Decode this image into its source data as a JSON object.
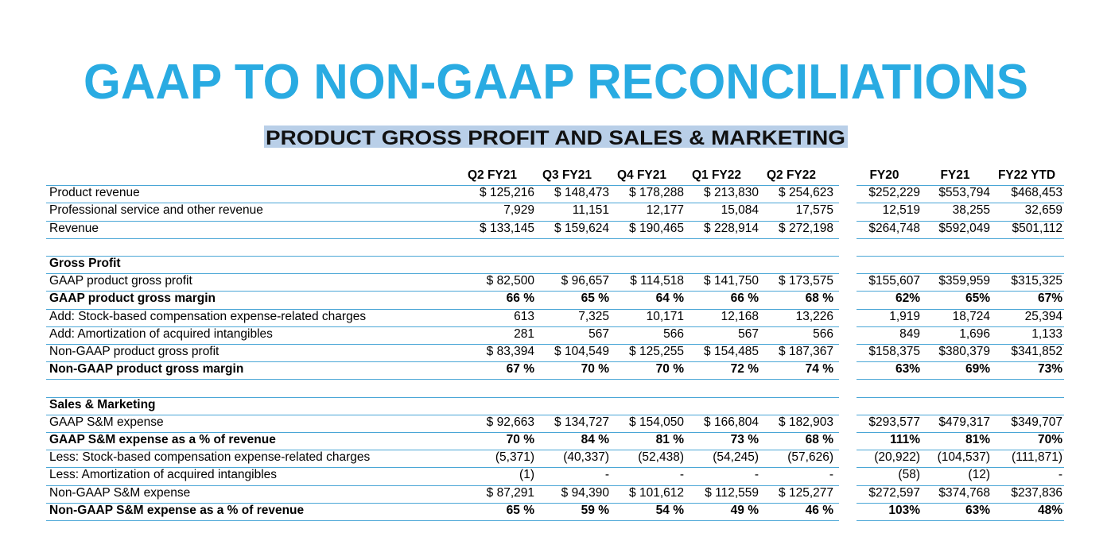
{
  "header": {
    "title": "GAAP TO NON-GAAP RECONCILIATIONS",
    "subtitle": "PRODUCT GROSS PROFIT AND SALES & MARKETING"
  },
  "table": {
    "columns": [
      "Q2 FY21",
      "Q3 FY21",
      "Q4 FY21",
      "Q1 FY22",
      "Q2 FY22",
      "FY20",
      "FY21",
      "FY22 YTD"
    ],
    "sections": [
      {
        "rows": [
          {
            "label": "Product revenue",
            "values": [
              "$ 125,216",
              "$ 148,473",
              "$ 178,288",
              "$ 213,830",
              "$ 254,623",
              "$252,229",
              "$553,794",
              "$468,453"
            ],
            "bold": false
          },
          {
            "label": "Professional service and other revenue",
            "values": [
              "7,929",
              "11,151",
              "12,177",
              "15,084",
              "17,575",
              "12,519",
              "38,255",
              "32,659"
            ],
            "bold": false
          },
          {
            "label": "Revenue",
            "values": [
              "$ 133,145",
              "$ 159,624",
              "$ 190,465",
              "$ 228,914",
              "$ 272,198",
              "$264,748",
              "$592,049",
              "$501,112"
            ],
            "bold": false
          }
        ]
      },
      {
        "title": "Gross Profit",
        "rows": [
          {
            "label": "GAAP product gross profit",
            "values": [
              "$ 82,500",
              "$ 96,657",
              "$ 114,518",
              "$ 141,750",
              "$ 173,575",
              "$155,607",
              "$359,959",
              "$315,325"
            ],
            "bold": false
          },
          {
            "label": "GAAP product gross margin",
            "values": [
              "66 %",
              "65 %",
              "64 %",
              "66 %",
              "68 %",
              "62%",
              "65%",
              "67%"
            ],
            "bold": true
          },
          {
            "label": "Add: Stock-based compensation expense-related charges",
            "values": [
              "613",
              "7,325",
              "10,171",
              "12,168",
              "13,226",
              "1,919",
              "18,724",
              "25,394"
            ],
            "bold": false
          },
          {
            "label": "Add: Amortization of acquired intangibles",
            "values": [
              "281",
              "567",
              "566",
              "567",
              "566",
              "849",
              "1,696",
              "1,133"
            ],
            "bold": false
          },
          {
            "label": "Non-GAAP product gross profit",
            "values": [
              "$ 83,394",
              "$ 104,549",
              "$ 125,255",
              "$ 154,485",
              "$ 187,367",
              "$158,375",
              "$380,379",
              "$341,852"
            ],
            "bold": false
          },
          {
            "label": "Non-GAAP product gross margin",
            "values": [
              "67 %",
              "70 %",
              "70 %",
              "72 %",
              "74 %",
              "63%",
              "69%",
              "73%"
            ],
            "bold": true
          }
        ]
      },
      {
        "title": "Sales & Marketing",
        "rows": [
          {
            "label": "GAAP S&M expense",
            "values": [
              "$ 92,663",
              "$ 134,727",
              "$ 154,050",
              "$ 166,804",
              "$ 182,903",
              "$293,577",
              "$479,317",
              "$349,707"
            ],
            "bold": false
          },
          {
            "label": "GAAP S&M expense as a % of revenue",
            "values": [
              "70 %",
              "84 %",
              "81 %",
              "73 %",
              "68 %",
              "111%",
              "81%",
              "70%"
            ],
            "bold": true
          },
          {
            "label": "Less: Stock-based compensation expense-related charges",
            "values": [
              "(5,371)",
              "(40,337)",
              "(52,438)",
              "(54,245)",
              "(57,626)",
              "(20,922)",
              "(104,537)",
              "(111,871)"
            ],
            "bold": false
          },
          {
            "label": "Less: Amortization of acquired intangibles",
            "values": [
              "(1)",
              "-",
              "-",
              "-",
              "-",
              "(58)",
              "(12)",
              "-"
            ],
            "bold": false
          },
          {
            "label": "Non-GAAP S&M expense",
            "values": [
              "$ 87,291",
              "$ 94,390",
              "$ 101,612",
              "$ 112,559",
              "$ 125,277",
              "$272,597",
              "$374,768",
              "$237,836"
            ],
            "bold": false
          },
          {
            "label": "Non-GAAP S&M expense as a % of revenue",
            "values": [
              "65 %",
              "59 %",
              "54 %",
              "49 %",
              "46 %",
              "103%",
              "63%",
              "48%"
            ],
            "bold": true
          }
        ]
      }
    ]
  }
}
